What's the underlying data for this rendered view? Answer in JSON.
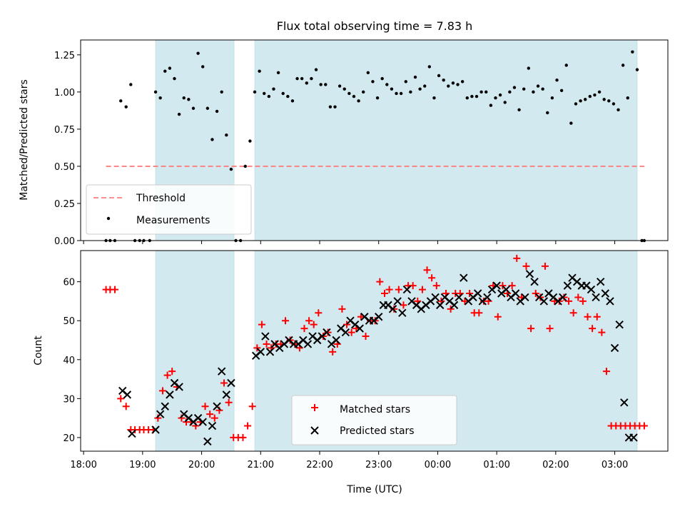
{
  "chart_data": [
    {
      "type": "scatter",
      "title": "Flux total observing time = 7.83 h",
      "xlabel": "",
      "ylabel": "Matched/Predicted stars",
      "ylim": [
        0,
        1.35
      ],
      "yticks": [
        "0.00",
        "0.25",
        "0.50",
        "0.75",
        "1.00",
        "1.25"
      ],
      "xlim": [
        -0.05,
        9.9
      ],
      "shaded_intervals": [
        [
          1.22,
          2.55
        ],
        [
          2.9,
          9.38
        ]
      ],
      "shade_color": "#d3e9f0",
      "threshold": {
        "name": "Threshold",
        "value": 0.5,
        "x": [
          0.38,
          9.5
        ],
        "color": "#ff7f7f"
      },
      "legend": {
        "position": "lower-left",
        "entries": [
          "Threshold",
          "Measurements"
        ]
      },
      "series": [
        {
          "name": "Measurements",
          "color": "#000000",
          "x": [
            0.38,
            0.45,
            0.53,
            0.63,
            0.72,
            0.8,
            0.87,
            0.95,
            1.02,
            1.12,
            1.22,
            1.3,
            1.38,
            1.46,
            1.54,
            1.62,
            1.7,
            1.78,
            1.86,
            1.94,
            2.02,
            2.1,
            2.18,
            2.26,
            2.34,
            2.42,
            2.5,
            2.58,
            2.66,
            2.74,
            2.82,
            2.9,
            2.98,
            3.06,
            3.14,
            3.22,
            3.3,
            3.38,
            3.46,
            3.54,
            3.62,
            3.7,
            3.78,
            3.86,
            3.94,
            4.02,
            4.1,
            4.18,
            4.26,
            4.34,
            4.42,
            4.5,
            4.58,
            4.66,
            4.74,
            4.82,
            4.9,
            4.98,
            5.06,
            5.14,
            5.22,
            5.3,
            5.38,
            5.46,
            5.54,
            5.62,
            5.7,
            5.78,
            5.86,
            5.94,
            6.02,
            6.1,
            6.18,
            6.26,
            6.34,
            6.42,
            6.5,
            6.58,
            6.66,
            6.74,
            6.82,
            6.9,
            6.98,
            7.06,
            7.14,
            7.22,
            7.3,
            7.38,
            7.46,
            7.54,
            7.62,
            7.7,
            7.78,
            7.86,
            7.94,
            8.02,
            8.1,
            8.18,
            8.26,
            8.34,
            8.42,
            8.5,
            8.58,
            8.66,
            8.74,
            8.82,
            8.9,
            8.98,
            9.06,
            9.14,
            9.22,
            9.3,
            9.38,
            9.46,
            9.5
          ],
          "y": [
            0.0,
            0.0,
            0.0,
            0.94,
            0.9,
            1.05,
            0.0,
            0.0,
            0.0,
            0.0,
            1.0,
            0.96,
            1.14,
            1.16,
            1.09,
            0.85,
            0.96,
            0.95,
            0.89,
            1.26,
            1.17,
            0.89,
            0.68,
            0.87,
            1.0,
            0.71,
            0.48,
            0.0,
            0.0,
            0.5,
            0.67,
            1.0,
            1.14,
            0.99,
            0.97,
            1.02,
            1.13,
            0.99,
            0.97,
            0.94,
            1.09,
            1.09,
            1.06,
            1.09,
            1.15,
            1.05,
            1.05,
            0.9,
            0.9,
            1.04,
            1.02,
            0.99,
            0.97,
            0.94,
            1.0,
            1.13,
            1.07,
            0.96,
            1.09,
            1.05,
            1.02,
            0.99,
            0.99,
            1.07,
            1.0,
            1.1,
            1.02,
            1.04,
            1.17,
            0.96,
            1.11,
            1.08,
            1.04,
            1.06,
            1.05,
            1.07,
            0.96,
            0.97,
            0.97,
            1.0,
            1.0,
            0.91,
            0.96,
            0.98,
            0.93,
            1.0,
            1.03,
            0.88,
            1.02,
            1.16,
            1.0,
            1.04,
            1.02,
            0.86,
            0.96,
            1.08,
            1.01,
            1.18,
            0.79,
            0.92,
            0.94,
            0.95,
            0.97,
            0.98,
            1.0,
            0.95,
            0.94,
            0.92,
            0.88,
            1.18,
            0.96,
            1.27,
            1.15,
            0.0,
            0.0
          ]
        }
      ]
    },
    {
      "type": "scatter",
      "title": "",
      "xlabel": "Time (UTC)",
      "ylabel": "Count",
      "ylim": [
        16.5,
        68
      ],
      "yticks": [
        "20",
        "30",
        "40",
        "50",
        "60"
      ],
      "xlim": [
        -0.05,
        9.9
      ],
      "xticks": [
        "18:00",
        "19:00",
        "20:00",
        "21:00",
        "22:00",
        "23:00",
        "00:00",
        "01:00",
        "02:00",
        "03:00"
      ],
      "shaded_intervals": [
        [
          1.22,
          2.55
        ],
        [
          2.9,
          9.38
        ]
      ],
      "shade_color": "#d3e9f0",
      "legend": {
        "position": "lower-center",
        "entries": [
          "Matched stars",
          "Predicted stars"
        ]
      },
      "series": [
        {
          "name": "Matched stars",
          "color": "#ff0000",
          "marker": "+",
          "x": [
            0.38,
            0.45,
            0.53,
            0.63,
            0.72,
            0.8,
            0.87,
            0.95,
            1.02,
            1.1,
            1.18,
            1.26,
            1.34,
            1.42,
            1.5,
            1.58,
            1.66,
            1.74,
            1.82,
            1.9,
            1.98,
            2.06,
            2.14,
            2.22,
            2.3,
            2.38,
            2.46,
            2.54,
            2.62,
            2.7,
            2.78,
            2.86,
            2.94,
            3.02,
            3.1,
            3.18,
            3.26,
            3.34,
            3.42,
            3.5,
            3.58,
            3.66,
            3.74,
            3.82,
            3.9,
            3.98,
            4.06,
            4.14,
            4.22,
            4.3,
            4.38,
            4.46,
            4.54,
            4.62,
            4.7,
            4.78,
            4.86,
            4.94,
            5.02,
            5.1,
            5.18,
            5.26,
            5.34,
            5.42,
            5.5,
            5.58,
            5.66,
            5.74,
            5.82,
            5.9,
            5.98,
            6.06,
            6.14,
            6.22,
            6.3,
            6.38,
            6.46,
            6.54,
            6.62,
            6.7,
            6.78,
            6.86,
            6.94,
            7.02,
            7.1,
            7.18,
            7.26,
            7.34,
            7.42,
            7.5,
            7.58,
            7.66,
            7.74,
            7.82,
            7.9,
            7.98,
            8.06,
            8.14,
            8.22,
            8.3,
            8.38,
            8.46,
            8.54,
            8.62,
            8.7,
            8.78,
            8.86,
            8.94,
            9.02,
            9.1,
            9.18,
            9.26,
            9.34,
            9.42,
            9.5
          ],
          "y": [
            58,
            58,
            58,
            30,
            28,
            22,
            22,
            22,
            22,
            22,
            22,
            25,
            32,
            36,
            37,
            33,
            25,
            24,
            24,
            23,
            24,
            28,
            26,
            25,
            27,
            34,
            29,
            20,
            20,
            20,
            23,
            28,
            43,
            49,
            44,
            43,
            44,
            44,
            50,
            45,
            44,
            43,
            48,
            50,
            49,
            52,
            46,
            47,
            42,
            44,
            53,
            49,
            47,
            48,
            51,
            46,
            50,
            50,
            60,
            57,
            58,
            53,
            58,
            54,
            59,
            59,
            55,
            58,
            63,
            61,
            59,
            55,
            57,
            53,
            57,
            57,
            55,
            57,
            52,
            52,
            55,
            55,
            59,
            51,
            59,
            57,
            59,
            66,
            56,
            64,
            48,
            57,
            56,
            64,
            48,
            55,
            55,
            56,
            55,
            52,
            56,
            55,
            51,
            48,
            51,
            47,
            37,
            23,
            23,
            23,
            23,
            23,
            23,
            23,
            23
          ]
        },
        {
          "name": "Predicted stars",
          "color": "#000000",
          "marker": "x",
          "x": [
            0.66,
            0.74,
            0.82,
            1.22,
            1.3,
            1.38,
            1.46,
            1.54,
            1.62,
            1.7,
            1.78,
            1.86,
            1.94,
            2.02,
            2.1,
            2.18,
            2.26,
            2.34,
            2.42,
            2.5,
            2.92,
            3.0,
            3.08,
            3.16,
            3.24,
            3.32,
            3.4,
            3.48,
            3.56,
            3.64,
            3.72,
            3.8,
            3.88,
            3.96,
            4.04,
            4.12,
            4.2,
            4.28,
            4.36,
            4.44,
            4.52,
            4.6,
            4.68,
            4.76,
            4.84,
            4.92,
            5.0,
            5.08,
            5.16,
            5.24,
            5.32,
            5.4,
            5.48,
            5.56,
            5.64,
            5.72,
            5.8,
            5.88,
            5.96,
            6.04,
            6.12,
            6.2,
            6.28,
            6.36,
            6.44,
            6.52,
            6.6,
            6.68,
            6.76,
            6.84,
            6.92,
            7.0,
            7.08,
            7.16,
            7.24,
            7.32,
            7.4,
            7.48,
            7.56,
            7.64,
            7.72,
            7.8,
            7.88,
            7.96,
            8.04,
            8.12,
            8.2,
            8.28,
            8.36,
            8.44,
            8.52,
            8.6,
            8.68,
            8.76,
            8.84,
            8.92,
            9.0,
            9.08,
            9.16,
            9.24,
            9.32
          ],
          "y": [
            32,
            31,
            21,
            22,
            26,
            28,
            31,
            34,
            33,
            26,
            25,
            24,
            25,
            24,
            19,
            23,
            28,
            37,
            31,
            34,
            41,
            42,
            46,
            42,
            44,
            43,
            44,
            45,
            44,
            44,
            45,
            44,
            46,
            45,
            46,
            47,
            44,
            45,
            48,
            47,
            50,
            49,
            48,
            51,
            50,
            50,
            51,
            54,
            54,
            53,
            55,
            52,
            58,
            55,
            54,
            53,
            54,
            55,
            56,
            54,
            56,
            55,
            54,
            56,
            61,
            55,
            56,
            57,
            55,
            56,
            58,
            59,
            57,
            58,
            56,
            57,
            55,
            56,
            62,
            60,
            56,
            55,
            57,
            56,
            55,
            56,
            59,
            61,
            60,
            59,
            59,
            58,
            56,
            60,
            57,
            55,
            43,
            49,
            29,
            20,
            20
          ]
        }
      ]
    }
  ]
}
